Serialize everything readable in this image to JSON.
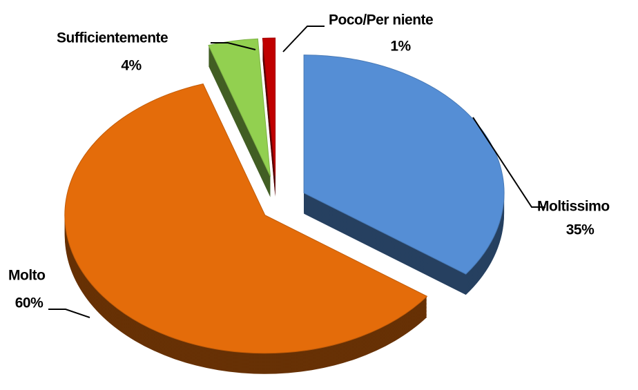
{
  "chart_data": {
    "type": "pie",
    "categories": [
      "Moltissimo",
      "Molto",
      "Sufficientemente",
      "Poco/Per niente"
    ],
    "values": [
      35,
      60,
      4,
      1
    ],
    "value_labels": [
      "35%",
      "60%",
      "4%",
      "1%"
    ],
    "colors": [
      "#558ed5",
      "#e46c0a",
      "#92d050",
      "#c00000"
    ]
  }
}
